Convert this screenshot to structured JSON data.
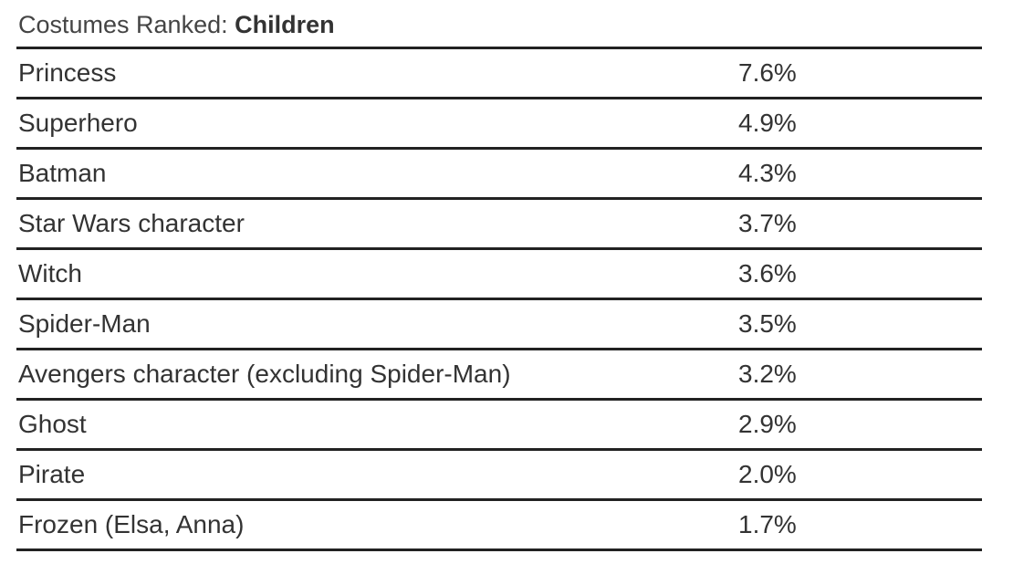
{
  "chart_data": {
    "type": "table",
    "title": "Costumes Ranked:",
    "title_bold": "Children",
    "rows": [
      {
        "name": "Princess",
        "value": "7.6%"
      },
      {
        "name": "Superhero",
        "value": "4.9%"
      },
      {
        "name": "Batman",
        "value": "4.3%"
      },
      {
        "name": "Star Wars character",
        "value": "3.7%"
      },
      {
        "name": "Witch",
        "value": "3.6%"
      },
      {
        "name": "Spider-Man",
        "value": "3.5%"
      },
      {
        "name": "Avengers character (excluding Spider-Man)",
        "value": "3.2%"
      },
      {
        "name": "Ghost",
        "value": "2.9%"
      },
      {
        "name": "Pirate",
        "value": "2.0%"
      },
      {
        "name": "Frozen (Elsa, Anna)",
        "value": "1.7%"
      }
    ]
  }
}
